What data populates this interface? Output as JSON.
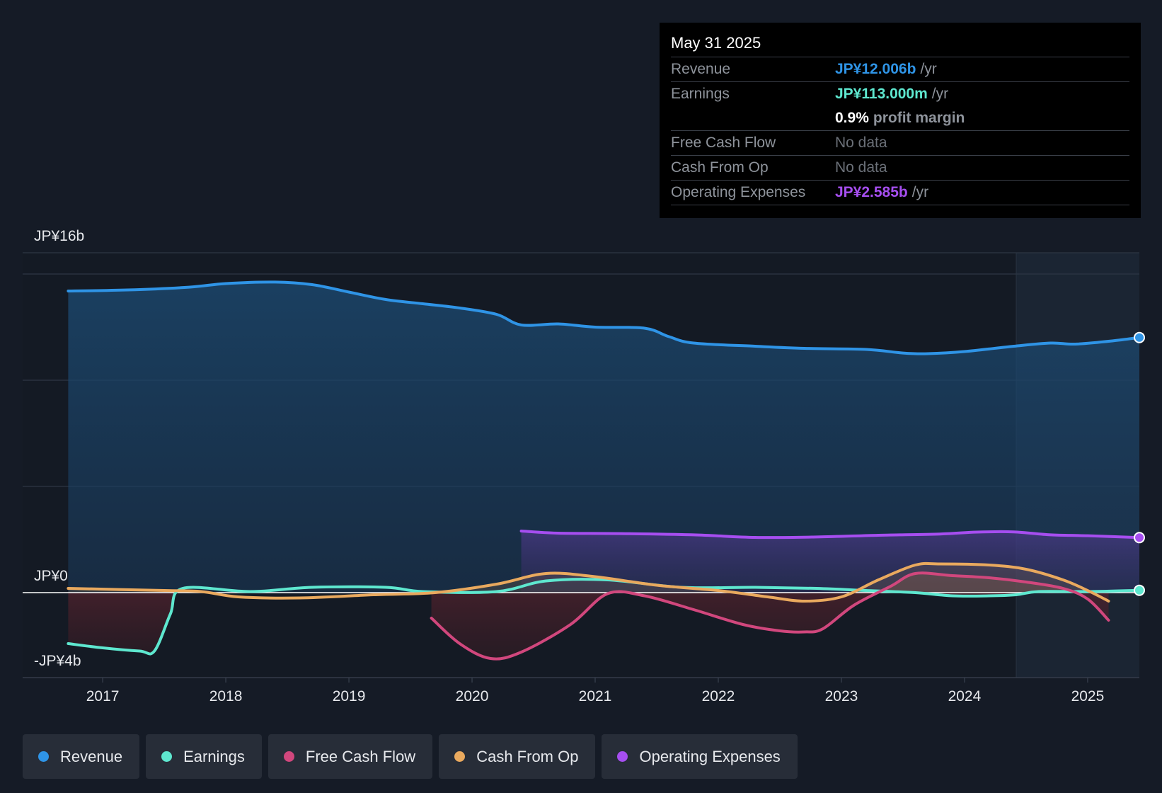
{
  "tooltip": {
    "date": "May 31 2025",
    "rows": [
      {
        "label": "Revenue",
        "value": "JP¥12.006b",
        "unit": "/yr"
      },
      {
        "label": "Earnings",
        "value": "JP¥113.000m",
        "unit": "/yr"
      },
      {
        "margin_value": "0.9%",
        "margin_text": "profit margin"
      },
      {
        "label": "Free Cash Flow",
        "value": "No data"
      },
      {
        "label": "Cash From Op",
        "value": "No data"
      },
      {
        "label": "Operating Expenses",
        "value": "JP¥2.585b",
        "unit": "/yr"
      }
    ]
  },
  "legend": [
    {
      "label": "Revenue",
      "color": "#2f94e6"
    },
    {
      "label": "Earnings",
      "color": "#5ee7cf"
    },
    {
      "label": "Free Cash Flow",
      "color": "#d1477d"
    },
    {
      "label": "Cash From Op",
      "color": "#e9a95e"
    },
    {
      "label": "Operating Expenses",
      "color": "#a64ef0"
    }
  ],
  "chart_data": {
    "type": "area",
    "title": "",
    "y_top_label": "JP¥16b",
    "y_zero_label": "JP¥0",
    "y_bottom_label": "-JP¥4b",
    "ylim": [
      -4,
      16
    ],
    "xlim": [
      2016.35,
      2025.42
    ],
    "x_ticks": [
      2017,
      2018,
      2019,
      2020,
      2021,
      2022,
      2023,
      2024,
      2025
    ],
    "x_tick_labels": [
      "2017",
      "2018",
      "2019",
      "2020",
      "2021",
      "2022",
      "2023",
      "2024",
      "2025"
    ],
    "forecast_start": 2024.42,
    "series": [
      {
        "name": "Revenue",
        "color": "#2f94e6",
        "points": [
          [
            2016.72,
            14.2
          ],
          [
            2017.2,
            14.25
          ],
          [
            2017.7,
            14.38
          ],
          [
            2018.0,
            14.55
          ],
          [
            2018.4,
            14.62
          ],
          [
            2018.7,
            14.5
          ],
          [
            2019.0,
            14.15
          ],
          [
            2019.3,
            13.8
          ],
          [
            2019.6,
            13.6
          ],
          [
            2019.9,
            13.4
          ],
          [
            2020.2,
            13.1
          ],
          [
            2020.4,
            12.6
          ],
          [
            2020.7,
            12.65
          ],
          [
            2021.0,
            12.5
          ],
          [
            2021.4,
            12.45
          ],
          [
            2021.6,
            12.05
          ],
          [
            2021.8,
            11.75
          ],
          [
            2022.3,
            11.6
          ],
          [
            2022.7,
            11.5
          ],
          [
            2023.2,
            11.45
          ],
          [
            2023.5,
            11.28
          ],
          [
            2023.7,
            11.25
          ],
          [
            2024.0,
            11.35
          ],
          [
            2024.4,
            11.6
          ],
          [
            2024.7,
            11.75
          ],
          [
            2024.9,
            11.7
          ],
          [
            2025.2,
            11.85
          ],
          [
            2025.42,
            12.01
          ]
        ]
      },
      {
        "name": "Operating Expenses",
        "color": "#a64ef0",
        "points": [
          [
            2020.4,
            2.9
          ],
          [
            2020.7,
            2.8
          ],
          [
            2021.2,
            2.78
          ],
          [
            2021.8,
            2.72
          ],
          [
            2022.3,
            2.6
          ],
          [
            2022.8,
            2.62
          ],
          [
            2023.3,
            2.7
          ],
          [
            2023.8,
            2.76
          ],
          [
            2024.1,
            2.85
          ],
          [
            2024.4,
            2.86
          ],
          [
            2024.7,
            2.72
          ],
          [
            2025.0,
            2.68
          ],
          [
            2025.42,
            2.59
          ]
        ]
      },
      {
        "name": "Earnings",
        "color": "#5ee7cf",
        "points": [
          [
            2016.72,
            -2.4
          ],
          [
            2017.0,
            -2.6
          ],
          [
            2017.3,
            -2.75
          ],
          [
            2017.42,
            -2.75
          ],
          [
            2017.55,
            -1.0
          ],
          [
            2017.65,
            0.2
          ],
          [
            2018.2,
            0.05
          ],
          [
            2018.7,
            0.25
          ],
          [
            2019.3,
            0.25
          ],
          [
            2019.6,
            0.05
          ],
          [
            2020.2,
            0.05
          ],
          [
            2020.6,
            0.55
          ],
          [
            2021.1,
            0.6
          ],
          [
            2021.7,
            0.25
          ],
          [
            2022.3,
            0.25
          ],
          [
            2022.8,
            0.2
          ],
          [
            2023.2,
            0.1
          ],
          [
            2023.6,
            0.0
          ],
          [
            2023.9,
            -0.15
          ],
          [
            2024.2,
            -0.15
          ],
          [
            2024.42,
            -0.1
          ],
          [
            2024.6,
            0.05
          ],
          [
            2025.0,
            0.05
          ],
          [
            2025.42,
            0.11
          ]
        ]
      },
      {
        "name": "Free Cash Flow",
        "color": "#d1477d",
        "points": [
          [
            2019.67,
            -1.2
          ],
          [
            2019.9,
            -2.4
          ],
          [
            2020.15,
            -3.1
          ],
          [
            2020.4,
            -2.8
          ],
          [
            2020.8,
            -1.5
          ],
          [
            2021.1,
            -0.05
          ],
          [
            2021.4,
            -0.15
          ],
          [
            2021.8,
            -0.8
          ],
          [
            2022.2,
            -1.5
          ],
          [
            2022.5,
            -1.8
          ],
          [
            2022.7,
            -1.85
          ],
          [
            2022.85,
            -1.7
          ],
          [
            2023.1,
            -0.6
          ],
          [
            2023.4,
            0.3
          ],
          [
            2023.6,
            0.9
          ],
          [
            2023.9,
            0.8
          ],
          [
            2024.2,
            0.7
          ],
          [
            2024.5,
            0.5
          ],
          [
            2024.8,
            0.2
          ],
          [
            2025.0,
            -0.3
          ],
          [
            2025.17,
            -1.3
          ]
        ]
      },
      {
        "name": "Cash From Op",
        "color": "#e9a95e",
        "points": [
          [
            2016.72,
            0.2
          ],
          [
            2017.5,
            0.1
          ],
          [
            2017.8,
            0.05
          ],
          [
            2018.1,
            -0.2
          ],
          [
            2018.6,
            -0.25
          ],
          [
            2019.2,
            -0.1
          ],
          [
            2019.7,
            0.0
          ],
          [
            2020.2,
            0.4
          ],
          [
            2020.6,
            0.9
          ],
          [
            2021.0,
            0.75
          ],
          [
            2021.5,
            0.35
          ],
          [
            2022.0,
            0.1
          ],
          [
            2022.4,
            -0.2
          ],
          [
            2022.7,
            -0.4
          ],
          [
            2023.0,
            -0.2
          ],
          [
            2023.3,
            0.6
          ],
          [
            2023.6,
            1.3
          ],
          [
            2023.8,
            1.35
          ],
          [
            2024.2,
            1.3
          ],
          [
            2024.5,
            1.1
          ],
          [
            2024.8,
            0.6
          ],
          [
            2025.0,
            0.1
          ],
          [
            2025.17,
            -0.4
          ]
        ]
      }
    ],
    "end_markers": [
      "Revenue",
      "Operating Expenses",
      "Earnings"
    ]
  }
}
